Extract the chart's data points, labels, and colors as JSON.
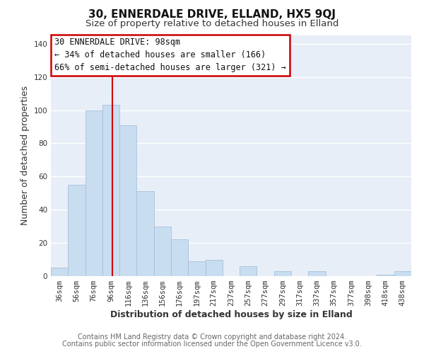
{
  "title": "30, ENNERDALE DRIVE, ELLAND, HX5 9QJ",
  "subtitle": "Size of property relative to detached houses in Elland",
  "xlabel": "Distribution of detached houses by size in Elland",
  "ylabel": "Number of detached properties",
  "bar_labels": [
    "36sqm",
    "56sqm",
    "76sqm",
    "96sqm",
    "116sqm",
    "136sqm",
    "156sqm",
    "176sqm",
    "197sqm",
    "217sqm",
    "237sqm",
    "257sqm",
    "277sqm",
    "297sqm",
    "317sqm",
    "337sqm",
    "357sqm",
    "377sqm",
    "398sqm",
    "418sqm",
    "438sqm"
  ],
  "bar_values": [
    5,
    55,
    100,
    103,
    91,
    51,
    30,
    22,
    9,
    10,
    0,
    6,
    0,
    3,
    0,
    3,
    0,
    0,
    0,
    1,
    3
  ],
  "bar_color": "#c9ddf0",
  "bar_edge_color": "#a8c0dc",
  "ylim": [
    0,
    145
  ],
  "yticks": [
    0,
    20,
    40,
    60,
    80,
    100,
    120,
    140
  ],
  "annotation_title": "30 ENNERDALE DRIVE: 98sqm",
  "annotation_line1": "← 34% of detached houses are smaller (166)",
  "annotation_line2": "66% of semi-detached houses are larger (321) →",
  "annotation_box_color": "#ffffff",
  "annotation_box_edge": "#cc0000",
  "property_line_color": "#cc0000",
  "footer1": "Contains HM Land Registry data © Crown copyright and database right 2024.",
  "footer2": "Contains public sector information licensed under the Open Government Licence v3.0.",
  "background_color": "#ffffff",
  "plot_bg_color": "#e8eef8",
  "grid_color": "#ffffff",
  "title_fontsize": 11,
  "subtitle_fontsize": 9.5,
  "axis_label_fontsize": 9,
  "tick_fontsize": 7.5,
  "footer_fontsize": 7,
  "annotation_fontsize": 8.5
}
